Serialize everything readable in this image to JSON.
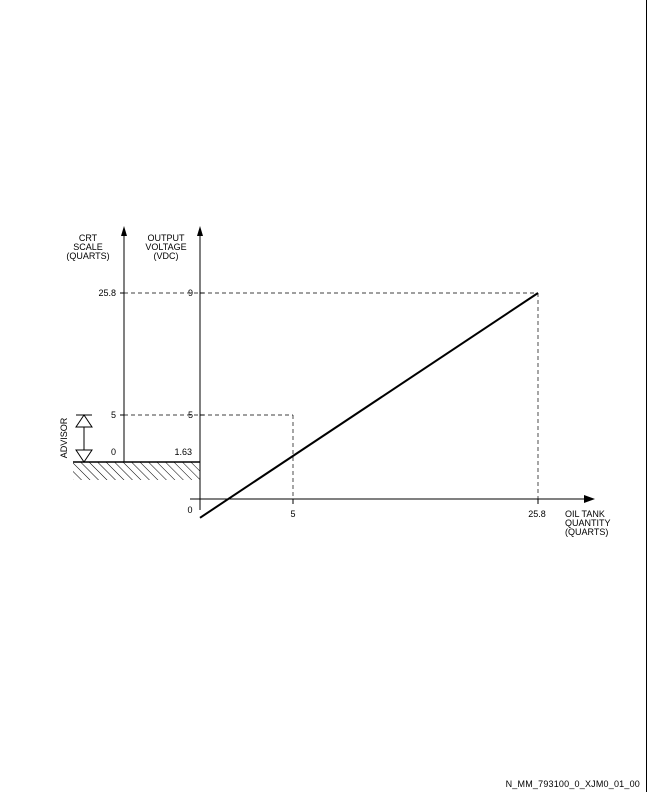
{
  "chart_data": {
    "type": "line",
    "crt_axis_label": [
      "CRT",
      "SCALE",
      "(QUARTS)"
    ],
    "voltage_axis_label": [
      "OUTPUT",
      "VOLTAGE",
      "(VDC)"
    ],
    "x_axis_label": [
      "OIL TANK",
      "QUANTITY",
      "(QUARTS)"
    ],
    "advisory_label": "ADVISOR",
    "x_origin_label": "0",
    "x_ticks": [
      "5",
      "25.8"
    ],
    "crt_ticks": [
      "25.8",
      "5",
      "0"
    ],
    "voltage_ticks": [
      "9",
      "5",
      "1.63"
    ],
    "x": [
      0,
      25.8
    ],
    "y_vdc": [
      1.63,
      9
    ],
    "reference_points": [
      {
        "x": 5,
        "vdc": 5,
        "crt": 5
      },
      {
        "x": 25.8,
        "vdc": 9,
        "crt": 25.8
      }
    ],
    "advisory_range_quarts": [
      0,
      5
    ]
  },
  "footer": {
    "figure_id": "N_MM_793100_0_XJM0_01_00"
  }
}
